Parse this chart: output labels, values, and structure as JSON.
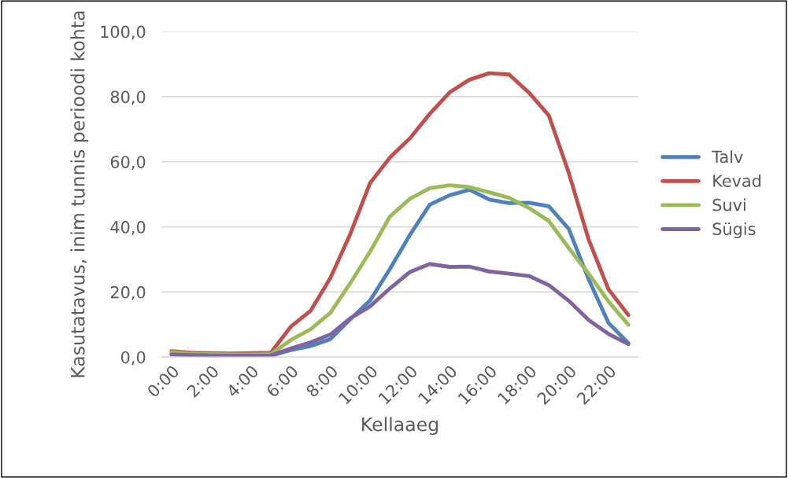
{
  "chart_data": {
    "type": "line",
    "xlabel": "Kellaaeg",
    "ylabel": "Kasutatavus, inim tunnis perioodi kohta",
    "categories": [
      "0:00",
      null,
      "2:00",
      null,
      "4:00",
      null,
      "6:00",
      null,
      "8:00",
      null,
      "10:00",
      null,
      "12:00",
      null,
      "14:00",
      null,
      "16:00",
      null,
      "18:00",
      null,
      "20:00",
      null,
      "22:00",
      null
    ],
    "series": [
      {
        "name": "Talv",
        "color": "#4f81bd",
        "values": [
          1.0,
          0.6,
          0.4,
          0.3,
          0.3,
          0.4,
          2.1,
          3.4,
          5.5,
          11.6,
          17.4,
          27.1,
          37.5,
          46.8,
          49.7,
          51.4,
          48.4,
          47.3,
          47.4,
          46.3,
          39.4,
          23.9,
          10.5,
          4.3
        ]
      },
      {
        "name": "Kevad",
        "color": "#c0504d",
        "values": [
          1.8,
          1.3,
          1.2,
          1.1,
          1.2,
          1.3,
          9.3,
          14.2,
          24.3,
          37.8,
          53.5,
          61.3,
          67.2,
          74.7,
          81.3,
          85.2,
          87.2,
          86.8,
          81.2,
          74.2,
          56.6,
          36.1,
          20.8,
          12.9
        ]
      },
      {
        "name": "Suvi",
        "color": "#9bbb59",
        "values": [
          1.5,
          1.0,
          0.9,
          0.8,
          0.8,
          0.9,
          5.2,
          8.5,
          13.6,
          22.7,
          32.4,
          43.2,
          48.6,
          51.9,
          52.8,
          52.2,
          50.6,
          48.9,
          45.8,
          41.8,
          33.5,
          25.6,
          17.1,
          9.9
        ]
      },
      {
        "name": "Sügis",
        "color": "#8064a2",
        "values": [
          0.8,
          0.6,
          0.5,
          0.4,
          0.4,
          0.5,
          2.6,
          4.5,
          6.9,
          11.9,
          15.6,
          21.1,
          26.1,
          28.6,
          27.7,
          27.8,
          26.3,
          25.6,
          24.9,
          22.1,
          17.3,
          11.4,
          7.1,
          4.0
        ]
      }
    ],
    "ylim": [
      0,
      100
    ],
    "yticks": [
      {
        "value": 0,
        "label": "0,0"
      },
      {
        "value": 20,
        "label": "20,0"
      },
      {
        "value": 40,
        "label": "40,0"
      },
      {
        "value": 60,
        "label": "60,0"
      },
      {
        "value": 80,
        "label": "80,0"
      },
      {
        "value": 100,
        "label": "100,0"
      }
    ],
    "grid": "y",
    "legend": "right",
    "marker": "none",
    "line_style": "solid"
  }
}
